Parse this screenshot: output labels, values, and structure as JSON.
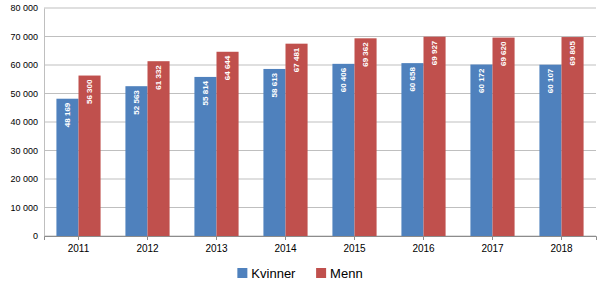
{
  "chart_data": {
    "type": "bar",
    "categories": [
      "2011",
      "2012",
      "2013",
      "2014",
      "2015",
      "2016",
      "2017",
      "2018"
    ],
    "series": [
      {
        "name": "Kvinner",
        "color": "#4f81bd",
        "values": [
          48169,
          52563,
          55814,
          58613,
          60406,
          60658,
          60172,
          60107
        ],
        "value_labels": [
          "48 169",
          "52 563",
          "55 814",
          "58 613",
          "60 406",
          "60 658",
          "60 172",
          "60 107"
        ]
      },
      {
        "name": "Menn",
        "color": "#c0504d",
        "values": [
          56300,
          61332,
          64644,
          67481,
          69362,
          69927,
          69620,
          69805
        ],
        "value_labels": [
          "56 300",
          "61 332",
          "64 644",
          "67 481",
          "69 362",
          "69 927",
          "69 620",
          "69 805"
        ]
      }
    ],
    "ylim": [
      0,
      80000
    ],
    "yticks": [
      0,
      {
        "value": 10000,
        "label": "10 000"
      },
      {
        "value": 20000,
        "label": "20 000"
      },
      {
        "value": 30000,
        "label": "30 000"
      },
      {
        "value": 40000,
        "label": "40 000"
      },
      {
        "value": 50000,
        "label": "50 000"
      },
      {
        "value": 60000,
        "label": "60 000"
      },
      {
        "value": 70000,
        "label": "70 000"
      },
      {
        "value": 80000,
        "label": "80 000"
      }
    ],
    "grid": true,
    "data_labels": true,
    "legend": "bottom"
  }
}
